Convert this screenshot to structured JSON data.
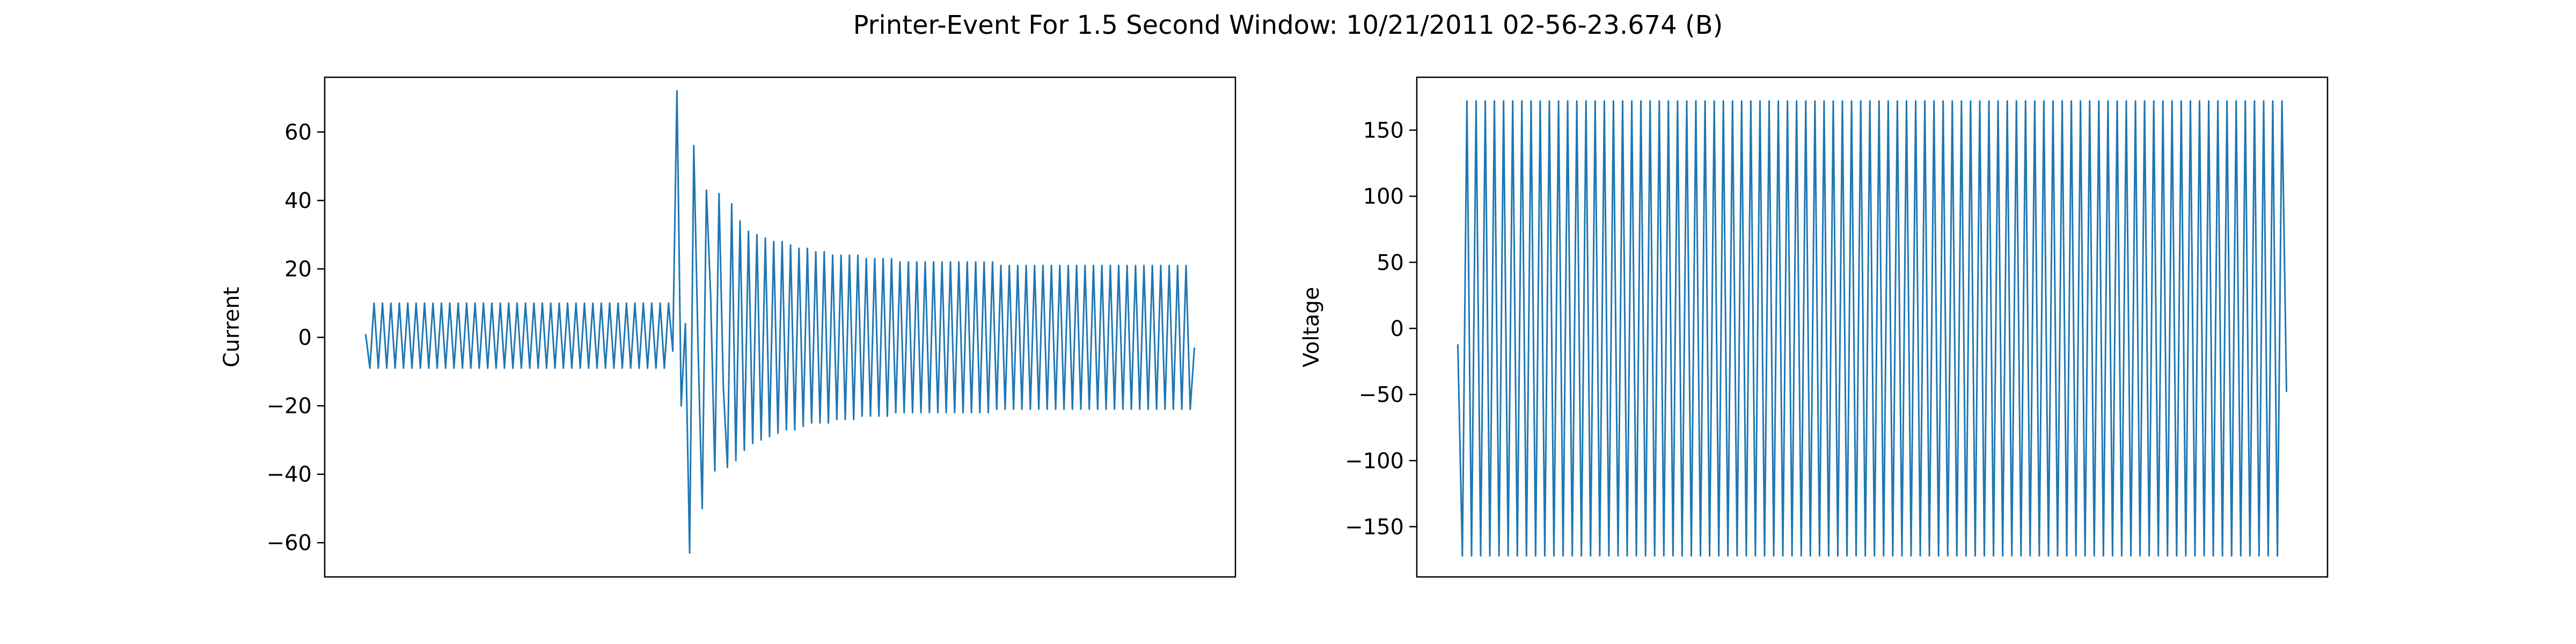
{
  "figure": {
    "title": "Printer-Event For 1.5 Second Window: 10/21/2011 02-56-23.674 (B)"
  },
  "colors": {
    "line": "#1f77b4",
    "axes": "#000000"
  },
  "chart_data": [
    {
      "type": "line",
      "title": "",
      "xlabel": "",
      "ylabel": "Current",
      "ylim": [
        -70,
        76
      ],
      "yticks": [
        -60,
        -40,
        -20,
        0,
        20,
        40,
        60
      ],
      "ytick_labels": [
        "−60",
        "−40",
        "−20",
        "0",
        "20",
        "40",
        "60"
      ],
      "x_ticks_shown": false,
      "grid": false,
      "legend": "none",
      "sample_count": 200,
      "series": [
        {
          "values": [
            1,
            -9,
            10,
            -9,
            10,
            -9,
            10,
            -9,
            10,
            -9,
            10,
            -9,
            10,
            -9,
            10,
            -9,
            10,
            -9,
            10,
            -9,
            10,
            -9,
            10,
            -9,
            10,
            -9,
            10,
            -9,
            10,
            -9,
            10,
            -9,
            10,
            -9,
            10,
            -9,
            10,
            -9,
            10,
            -9,
            10,
            -9,
            10,
            -9,
            10,
            -9,
            10,
            -9,
            10,
            -9,
            10,
            -9,
            10,
            -9,
            10,
            -9,
            10,
            -9,
            10,
            -9,
            10,
            -9,
            10,
            -9,
            10,
            -9,
            10,
            -9,
            10,
            -9,
            10,
            -9,
            10,
            -4,
            72,
            -20,
            4,
            -63,
            56,
            -2,
            -50,
            43,
            12,
            -39,
            42,
            -14,
            -38,
            39,
            -36,
            34,
            -33,
            31,
            -31,
            30,
            -30,
            29,
            -29,
            28,
            -28,
            28,
            -27,
            27,
            -27,
            26,
            -26,
            26,
            -25,
            25,
            -25,
            25,
            -25,
            24,
            -24,
            24,
            -24,
            24,
            -24,
            24,
            -23,
            23,
            -23,
            23,
            -23,
            23,
            -23,
            23,
            -22,
            22,
            -22,
            22,
            -22,
            22,
            -22,
            22,
            -22,
            22,
            -22,
            22,
            -22,
            22,
            -22,
            22,
            -22,
            22,
            -22,
            22,
            -22,
            22,
            -22,
            22,
            -21,
            21,
            -21,
            21,
            -21,
            21,
            -21,
            21,
            -21,
            21,
            -21,
            21,
            -21,
            21,
            -21,
            21,
            -21,
            21,
            -21,
            21,
            -21,
            21,
            -21,
            21,
            -21,
            21,
            -21,
            21,
            -21,
            21,
            -21,
            21,
            -21,
            21,
            -21,
            21,
            -21,
            21,
            -21,
            21,
            -21,
            21,
            -21,
            21,
            -21,
            21,
            -21,
            -3
          ]
        }
      ]
    },
    {
      "type": "line",
      "title": "",
      "xlabel": "",
      "ylabel": "Voltage",
      "ylim": [
        -188,
        190
      ],
      "yticks": [
        -150,
        -100,
        -50,
        0,
        50,
        100,
        150
      ],
      "ytick_labels": [
        "−150",
        "−100",
        "−50",
        "0",
        "50",
        "100",
        "150"
      ],
      "x_ticks_shown": false,
      "grid": false,
      "legend": "none",
      "sample_count": 180,
      "series": [
        {
          "values": [
            -12,
            -172,
            172,
            -172,
            172,
            -172,
            172,
            -172,
            172,
            -172,
            172,
            -172,
            172,
            -172,
            172,
            -172,
            172,
            -172,
            172,
            -172,
            172,
            -172,
            172,
            -172,
            172,
            -172,
            172,
            -172,
            172,
            -172,
            172,
            -172,
            172,
            -172,
            172,
            -172,
            172,
            -172,
            172,
            -172,
            172,
            -172,
            172,
            -172,
            172,
            -172,
            172,
            -172,
            172,
            -172,
            172,
            -172,
            172,
            -172,
            172,
            -172,
            172,
            -172,
            172,
            -172,
            172,
            -172,
            172,
            -172,
            172,
            -172,
            172,
            -172,
            172,
            -172,
            172,
            -172,
            172,
            -172,
            172,
            -172,
            172,
            -172,
            172,
            -172,
            172,
            -172,
            172,
            -172,
            172,
            -172,
            172,
            -172,
            172,
            -172,
            172,
            -172,
            172,
            -172,
            172,
            -172,
            172,
            -172,
            172,
            -172,
            172,
            -172,
            172,
            -172,
            172,
            -172,
            172,
            -172,
            172,
            -172,
            172,
            -172,
            172,
            -172,
            172,
            -172,
            172,
            -172,
            172,
            -172,
            172,
            -172,
            172,
            -172,
            172,
            -172,
            172,
            -172,
            172,
            -172,
            172,
            -172,
            172,
            -172,
            172,
            -172,
            172,
            -172,
            172,
            -172,
            172,
            -172,
            172,
            -172,
            172,
            -172,
            172,
            -172,
            172,
            -172,
            172,
            -172,
            172,
            -172,
            172,
            -172,
            172,
            -172,
            172,
            -172,
            172,
            -172,
            172,
            -172,
            172,
            -172,
            172,
            -172,
            172,
            -172,
            172,
            -172,
            172,
            -172,
            172,
            -172,
            172,
            -172,
            172,
            -172,
            172,
            -48
          ]
        }
      ]
    }
  ]
}
